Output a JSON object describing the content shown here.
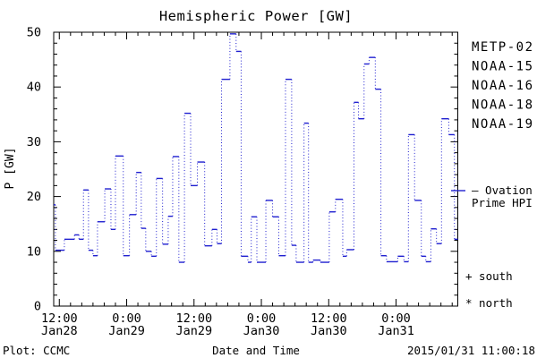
{
  "title": "Hemispheric Power [GW]",
  "ylabel": "P [GW]",
  "footer": {
    "credit": "Plot: CCMC",
    "xlabel": "Date and Time",
    "timestamp": "2015/01/31 11:00:18"
  },
  "legend": {
    "satellites": [
      {
        "label": "METP-02",
        "color": "#000000"
      },
      {
        "label": "NOAA-15",
        "color": "#2020d0"
      },
      {
        "label": "NOAA-16",
        "color": "#30bdff"
      },
      {
        "label": "NOAA-18",
        "color": "#5fd98a"
      },
      {
        "label": "NOAA-19",
        "color": "#ff9c27"
      }
    ]
  },
  "annotations": {
    "ovation_line1": "– Ovation",
    "ovation_line2": "Prime HPI",
    "ovation_color": "#2020d0",
    "south": "+ south",
    "north": "* north"
  },
  "chart_data": {
    "type": "line",
    "subtype": "step-post",
    "title": "Hemispheric Power [GW]",
    "xlabel": "Date and Time",
    "ylabel": "P [GW]",
    "y_unit": "GW",
    "x_unit": "hours since 2015-01-28 11:00",
    "x_start_label": "2015-01-28 11:00",
    "x_end_label": "2015-01-31 11:00",
    "x_hours_total": 72,
    "ylim": [
      0,
      50
    ],
    "grid": false,
    "y_major_ticks": [
      0,
      10,
      20,
      30,
      40,
      50
    ],
    "y_minor_step": 2,
    "x_minor_step_hours": 2,
    "x_major_ticks": [
      {
        "hour": 1,
        "time": "12:00",
        "date": "Jan28"
      },
      {
        "hour": 13,
        "time": "0:00",
        "date": "Jan29"
      },
      {
        "hour": 25,
        "time": "12:00",
        "date": "Jan29"
      },
      {
        "hour": 37,
        "time": "0:00",
        "date": "Jan30"
      },
      {
        "hour": 49,
        "time": "12:00",
        "date": "Jan30"
      },
      {
        "hour": 61,
        "time": "0:00",
        "date": "Jan31"
      }
    ],
    "series": [
      {
        "name": "Ovation Prime HPI",
        "color": "#2020d0",
        "line_style": "solid horizontals, dotted verticals",
        "points": [
          [
            0,
            18.5
          ],
          [
            0.3,
            10.2
          ],
          [
            1.9,
            12.2
          ],
          [
            3.7,
            13.0
          ],
          [
            4.5,
            12.2
          ],
          [
            5.3,
            21.2
          ],
          [
            6.2,
            10.2
          ],
          [
            7.0,
            9.2
          ],
          [
            7.8,
            15.4
          ],
          [
            9.1,
            21.4
          ],
          [
            10.2,
            14.0
          ],
          [
            11.0,
            27.4
          ],
          [
            12.4,
            9.2
          ],
          [
            13.5,
            16.7
          ],
          [
            14.7,
            24.4
          ],
          [
            15.6,
            14.2
          ],
          [
            16.4,
            10.0
          ],
          [
            17.4,
            9.1
          ],
          [
            18.3,
            23.3
          ],
          [
            19.4,
            11.3
          ],
          [
            20.4,
            16.4
          ],
          [
            21.2,
            27.3
          ],
          [
            22.3,
            8.0
          ],
          [
            23.3,
            35.2
          ],
          [
            24.4,
            22.0
          ],
          [
            25.6,
            26.3
          ],
          [
            26.9,
            11.0
          ],
          [
            28.2,
            14.0
          ],
          [
            29.1,
            11.4
          ],
          [
            29.9,
            41.4
          ],
          [
            31.4,
            49.7
          ],
          [
            32.5,
            46.5
          ],
          [
            33.4,
            9.1
          ],
          [
            34.6,
            8.0
          ],
          [
            35.2,
            16.3
          ],
          [
            36.2,
            8.0
          ],
          [
            37.8,
            19.3
          ],
          [
            39.0,
            16.3
          ],
          [
            40.1,
            9.2
          ],
          [
            41.3,
            41.4
          ],
          [
            42.4,
            11.1
          ],
          [
            43.2,
            8.0
          ],
          [
            44.6,
            33.4
          ],
          [
            45.4,
            8.0
          ],
          [
            46.2,
            8.4
          ],
          [
            47.5,
            8.0
          ],
          [
            49.1,
            17.2
          ],
          [
            50.2,
            19.5
          ],
          [
            51.5,
            9.1
          ],
          [
            52.2,
            10.3
          ],
          [
            53.5,
            37.2
          ],
          [
            54.3,
            34.2
          ],
          [
            55.3,
            44.2
          ],
          [
            56.2,
            45.4
          ],
          [
            57.3,
            39.6
          ],
          [
            58.3,
            9.2
          ],
          [
            59.3,
            8.1
          ],
          [
            61.3,
            9.1
          ],
          [
            62.4,
            8.1
          ],
          [
            63.2,
            31.3
          ],
          [
            64.3,
            19.3
          ],
          [
            65.5,
            9.1
          ],
          [
            66.3,
            8.1
          ],
          [
            67.2,
            14.1
          ],
          [
            68.2,
            11.4
          ],
          [
            69.1,
            34.2
          ],
          [
            70.4,
            31.3
          ],
          [
            71.4,
            12.2
          ]
        ]
      }
    ]
  }
}
